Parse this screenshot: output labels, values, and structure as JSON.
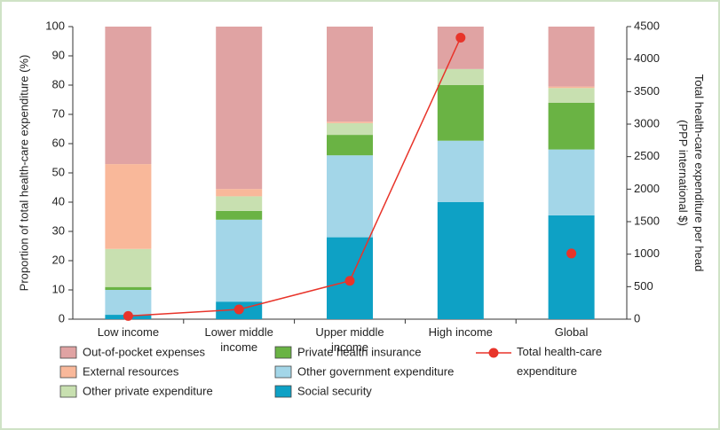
{
  "chart_data": {
    "type": "stacked_bar_line",
    "ylabel": "Proportion of total health-care expenditure (%)",
    "y2label": "Total health-care expenditure per head (PPP international $)",
    "categories": [
      "Low income",
      "Lower middle income",
      "Upper middle income",
      "High income",
      "Global"
    ],
    "series": [
      {
        "name": "Social security",
        "color": "#0ea1c5",
        "values": [
          1.5,
          6,
          28,
          40,
          35.5
        ]
      },
      {
        "name": "Other government expenditure",
        "color": "#a3d6e8",
        "values": [
          8.5,
          28,
          28,
          21,
          22.5
        ]
      },
      {
        "name": "Private health insurance",
        "color": "#6ab344",
        "values": [
          1,
          3,
          7,
          19,
          16
        ]
      },
      {
        "name": "Other private expenditure",
        "color": "#c8e0b0",
        "values": [
          13,
          5,
          4,
          5.5,
          5
        ]
      },
      {
        "name": "External resources",
        "color": "#f9b89a",
        "values": [
          29,
          2.5,
          0.5,
          0,
          0.5
        ]
      },
      {
        "name": "Out-of-pocket expenses",
        "color": "#e0a3a3",
        "values": [
          47,
          55.5,
          32.5,
          14.5,
          20.5
        ]
      },
      {
        "name": "Total health-care expenditure",
        "color": "#e8342a",
        "axis": "y2",
        "type": "line",
        "break_before_last": true,
        "values": [
          50,
          150,
          590,
          4330,
          1010
        ]
      }
    ],
    "ylim": [
      0,
      100
    ],
    "yticks": [
      0,
      10,
      20,
      30,
      40,
      50,
      60,
      70,
      80,
      90,
      100
    ],
    "y2lim": [
      0,
      4500
    ],
    "y2ticks": [
      0,
      500,
      1000,
      1500,
      2000,
      2500,
      3000,
      3500,
      4000,
      4500
    ]
  }
}
